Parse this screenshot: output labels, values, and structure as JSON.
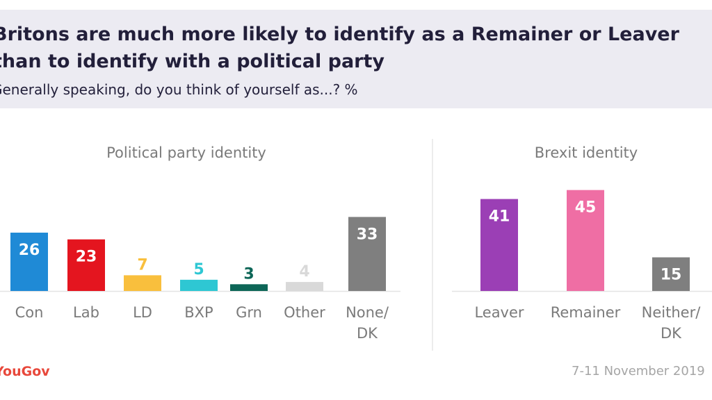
{
  "title_lines": [
    "Britons are much more likely to identify as a Remainer or Leaver",
    "than to identify with a political party"
  ],
  "subtitle": "Generally speaking, do you think of yourself as...? %",
  "chart_data": [
    {
      "type": "bar",
      "title": "Political party identity",
      "categories": [
        "Con",
        "Lab",
        "LD",
        "BXP",
        "Grn",
        "Other",
        "None/ DK"
      ],
      "category_lines": [
        [
          "Con"
        ],
        [
          "Lab"
        ],
        [
          "LD"
        ],
        [
          "BXP"
        ],
        [
          "Grn"
        ],
        [
          "Other"
        ],
        [
          "None/",
          "DK"
        ]
      ],
      "values": [
        26,
        23,
        7,
        5,
        3,
        4,
        33
      ],
      "colors": [
        "#1f8ad6",
        "#e4151f",
        "#f9bf3d",
        "#2ec7d3",
        "#0d6657",
        "#d9d9d9",
        "#7f7f7f"
      ],
      "label_colors": [
        "#ffffff",
        "#ffffff",
        "#f9bf3d",
        "#2ec7d3",
        "#0d6657",
        "#d9d9d9",
        "#ffffff"
      ],
      "label_inside": [
        true,
        true,
        false,
        false,
        false,
        false,
        true
      ],
      "ylim": [
        0,
        45
      ],
      "grid": false,
      "xlabel": "",
      "ylabel": ""
    },
    {
      "type": "bar",
      "title": "Brexit identity",
      "categories": [
        "Leaver",
        "Remainer",
        "Neither/ DK"
      ],
      "category_lines": [
        [
          "Leaver"
        ],
        [
          "Remainer"
        ],
        [
          "Neither/",
          "DK"
        ]
      ],
      "values": [
        41,
        45,
        15
      ],
      "colors": [
        "#9b3fb5",
        "#ef6ea4",
        "#7f7f7f"
      ],
      "label_colors": [
        "#ffffff",
        "#ffffff",
        "#ffffff"
      ],
      "label_inside": [
        true,
        true,
        true
      ],
      "ylim": [
        0,
        45
      ],
      "grid": false,
      "xlabel": "",
      "ylabel": ""
    }
  ],
  "footer": {
    "brand": "YouGov",
    "date": "7-11 November 2019"
  },
  "colors": {
    "header_background": "#ecebf2",
    "title_text": "#221f3a",
    "brand": "#e8483b"
  }
}
